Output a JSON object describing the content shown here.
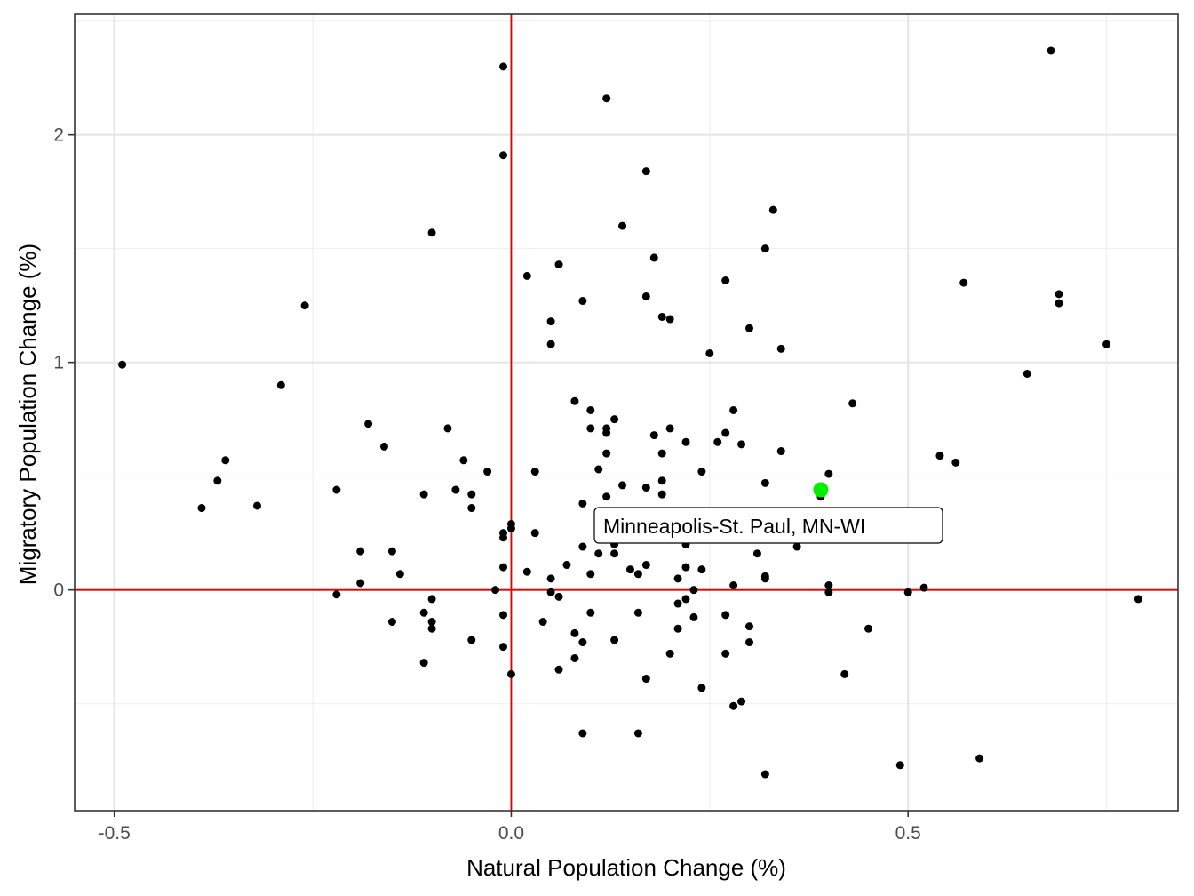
{
  "chart_data": {
    "type": "scatter",
    "title": "",
    "xlabel": "Natural Population Change (%)",
    "ylabel": "Migratory Population Change (%)",
    "xlim": [
      -0.55,
      0.84
    ],
    "ylim": [
      -0.97,
      2.53
    ],
    "x_ticks": [
      -0.5,
      0.0,
      0.5
    ],
    "x_tick_labels": [
      "-0.5",
      "0.0",
      "0.5"
    ],
    "y_ticks": [
      0,
      1,
      2
    ],
    "y_tick_labels": [
      "0",
      "1",
      "2"
    ],
    "grid": true,
    "reference_lines": {
      "x": 0,
      "y": 0,
      "color": "#e00000"
    },
    "point_color": "#000000",
    "highlight_color": "#00ee00",
    "highlight": {
      "label": "Minneapolis-St. Paul, MN-WI",
      "x": 0.39,
      "y": 0.44
    },
    "points": [
      [
        -0.49,
        0.99
      ],
      [
        -0.39,
        0.36
      ],
      [
        -0.37,
        0.48
      ],
      [
        -0.36,
        0.57
      ],
      [
        -0.32,
        0.37
      ],
      [
        -0.29,
        0.9
      ],
      [
        -0.26,
        1.25
      ],
      [
        -0.22,
        0.44
      ],
      [
        -0.22,
        -0.02
      ],
      [
        -0.19,
        0.17
      ],
      [
        -0.19,
        0.03
      ],
      [
        -0.18,
        0.73
      ],
      [
        -0.16,
        0.63
      ],
      [
        -0.15,
        0.17
      ],
      [
        -0.15,
        -0.14
      ],
      [
        -0.14,
        0.07
      ],
      [
        -0.11,
        0.42
      ],
      [
        -0.11,
        -0.1
      ],
      [
        -0.11,
        -0.32
      ],
      [
        -0.1,
        1.57
      ],
      [
        -0.1,
        -0.04
      ],
      [
        -0.1,
        -0.17
      ],
      [
        -0.1,
        -0.14
      ],
      [
        -0.08,
        0.71
      ],
      [
        -0.07,
        0.44
      ],
      [
        -0.06,
        0.57
      ],
      [
        -0.05,
        0.42
      ],
      [
        -0.05,
        0.36
      ],
      [
        -0.05,
        -0.22
      ],
      [
        -0.03,
        0.52
      ],
      [
        -0.02,
        0.0
      ],
      [
        -0.01,
        2.3
      ],
      [
        -0.01,
        1.91
      ],
      [
        -0.01,
        0.25
      ],
      [
        -0.01,
        0.23
      ],
      [
        -0.01,
        0.1
      ],
      [
        -0.01,
        -0.11
      ],
      [
        -0.01,
        -0.25
      ],
      [
        0.0,
        0.29
      ],
      [
        0.0,
        0.27
      ],
      [
        0.0,
        -0.37
      ],
      [
        0.02,
        1.38
      ],
      [
        0.02,
        0.08
      ],
      [
        0.03,
        0.52
      ],
      [
        0.03,
        0.25
      ],
      [
        0.04,
        -0.14
      ],
      [
        0.05,
        1.18
      ],
      [
        0.05,
        1.08
      ],
      [
        0.05,
        0.05
      ],
      [
        0.05,
        -0.01
      ],
      [
        0.06,
        1.43
      ],
      [
        0.06,
        -0.03
      ],
      [
        0.06,
        -0.35
      ],
      [
        0.07,
        0.11
      ],
      [
        0.08,
        0.83
      ],
      [
        0.08,
        -0.19
      ],
      [
        0.08,
        -0.3
      ],
      [
        0.09,
        1.27
      ],
      [
        0.09,
        0.38
      ],
      [
        0.09,
        0.19
      ],
      [
        0.09,
        -0.23
      ],
      [
        0.09,
        -0.63
      ],
      [
        0.1,
        0.79
      ],
      [
        0.1,
        0.71
      ],
      [
        0.1,
        0.07
      ],
      [
        0.1,
        -0.1
      ],
      [
        0.11,
        0.53
      ],
      [
        0.11,
        0.16
      ],
      [
        0.12,
        2.16
      ],
      [
        0.12,
        0.71
      ],
      [
        0.12,
        0.69
      ],
      [
        0.12,
        0.6
      ],
      [
        0.12,
        0.41
      ],
      [
        0.13,
        0.75
      ],
      [
        0.13,
        0.2
      ],
      [
        0.13,
        0.16
      ],
      [
        0.13,
        -0.22
      ],
      [
        0.14,
        1.6
      ],
      [
        0.14,
        0.46
      ],
      [
        0.15,
        0.09
      ],
      [
        0.16,
        0.07
      ],
      [
        0.16,
        -0.1
      ],
      [
        0.16,
        -0.63
      ],
      [
        0.17,
        1.84
      ],
      [
        0.17,
        1.29
      ],
      [
        0.17,
        0.45
      ],
      [
        0.17,
        0.11
      ],
      [
        0.17,
        -0.39
      ],
      [
        0.18,
        1.46
      ],
      [
        0.18,
        0.68
      ],
      [
        0.19,
        1.2
      ],
      [
        0.19,
        0.6
      ],
      [
        0.19,
        0.48
      ],
      [
        0.19,
        0.42
      ],
      [
        0.2,
        1.19
      ],
      [
        0.2,
        0.71
      ],
      [
        0.2,
        -0.28
      ],
      [
        0.21,
        0.05
      ],
      [
        0.21,
        -0.06
      ],
      [
        0.21,
        -0.17
      ],
      [
        0.22,
        0.65
      ],
      [
        0.22,
        0.2
      ],
      [
        0.22,
        0.1
      ],
      [
        0.22,
        -0.04
      ],
      [
        0.23,
        0.0
      ],
      [
        0.23,
        -0.12
      ],
      [
        0.24,
        0.52
      ],
      [
        0.24,
        0.09
      ],
      [
        0.24,
        -0.43
      ],
      [
        0.25,
        1.04
      ],
      [
        0.26,
        0.65
      ],
      [
        0.27,
        1.36
      ],
      [
        0.27,
        0.69
      ],
      [
        0.27,
        -0.11
      ],
      [
        0.27,
        -0.28
      ],
      [
        0.28,
        0.79
      ],
      [
        0.28,
        0.02
      ],
      [
        0.28,
        -0.51
      ],
      [
        0.29,
        0.64
      ],
      [
        0.29,
        -0.49
      ],
      [
        0.3,
        1.15
      ],
      [
        0.3,
        -0.16
      ],
      [
        0.3,
        -0.23
      ],
      [
        0.31,
        0.16
      ],
      [
        0.32,
        1.5
      ],
      [
        0.32,
        0.47
      ],
      [
        0.32,
        0.06
      ],
      [
        0.32,
        0.05
      ],
      [
        0.32,
        -0.81
      ],
      [
        0.33,
        1.67
      ],
      [
        0.34,
        1.06
      ],
      [
        0.34,
        0.61
      ],
      [
        0.36,
        0.19
      ],
      [
        0.39,
        0.41
      ],
      [
        0.4,
        0.51
      ],
      [
        0.4,
        0.02
      ],
      [
        0.4,
        -0.01
      ],
      [
        0.42,
        -0.37
      ],
      [
        0.43,
        0.82
      ],
      [
        0.45,
        -0.17
      ],
      [
        0.49,
        -0.77
      ],
      [
        0.5,
        -0.01
      ],
      [
        0.52,
        0.01
      ],
      [
        0.54,
        0.59
      ],
      [
        0.56,
        0.56
      ],
      [
        0.57,
        1.35
      ],
      [
        0.59,
        -0.74
      ],
      [
        0.65,
        0.95
      ],
      [
        0.68,
        2.37
      ],
      [
        0.69,
        1.3
      ],
      [
        0.69,
        1.26
      ],
      [
        0.75,
        1.08
      ],
      [
        0.79,
        -0.04
      ]
    ]
  }
}
